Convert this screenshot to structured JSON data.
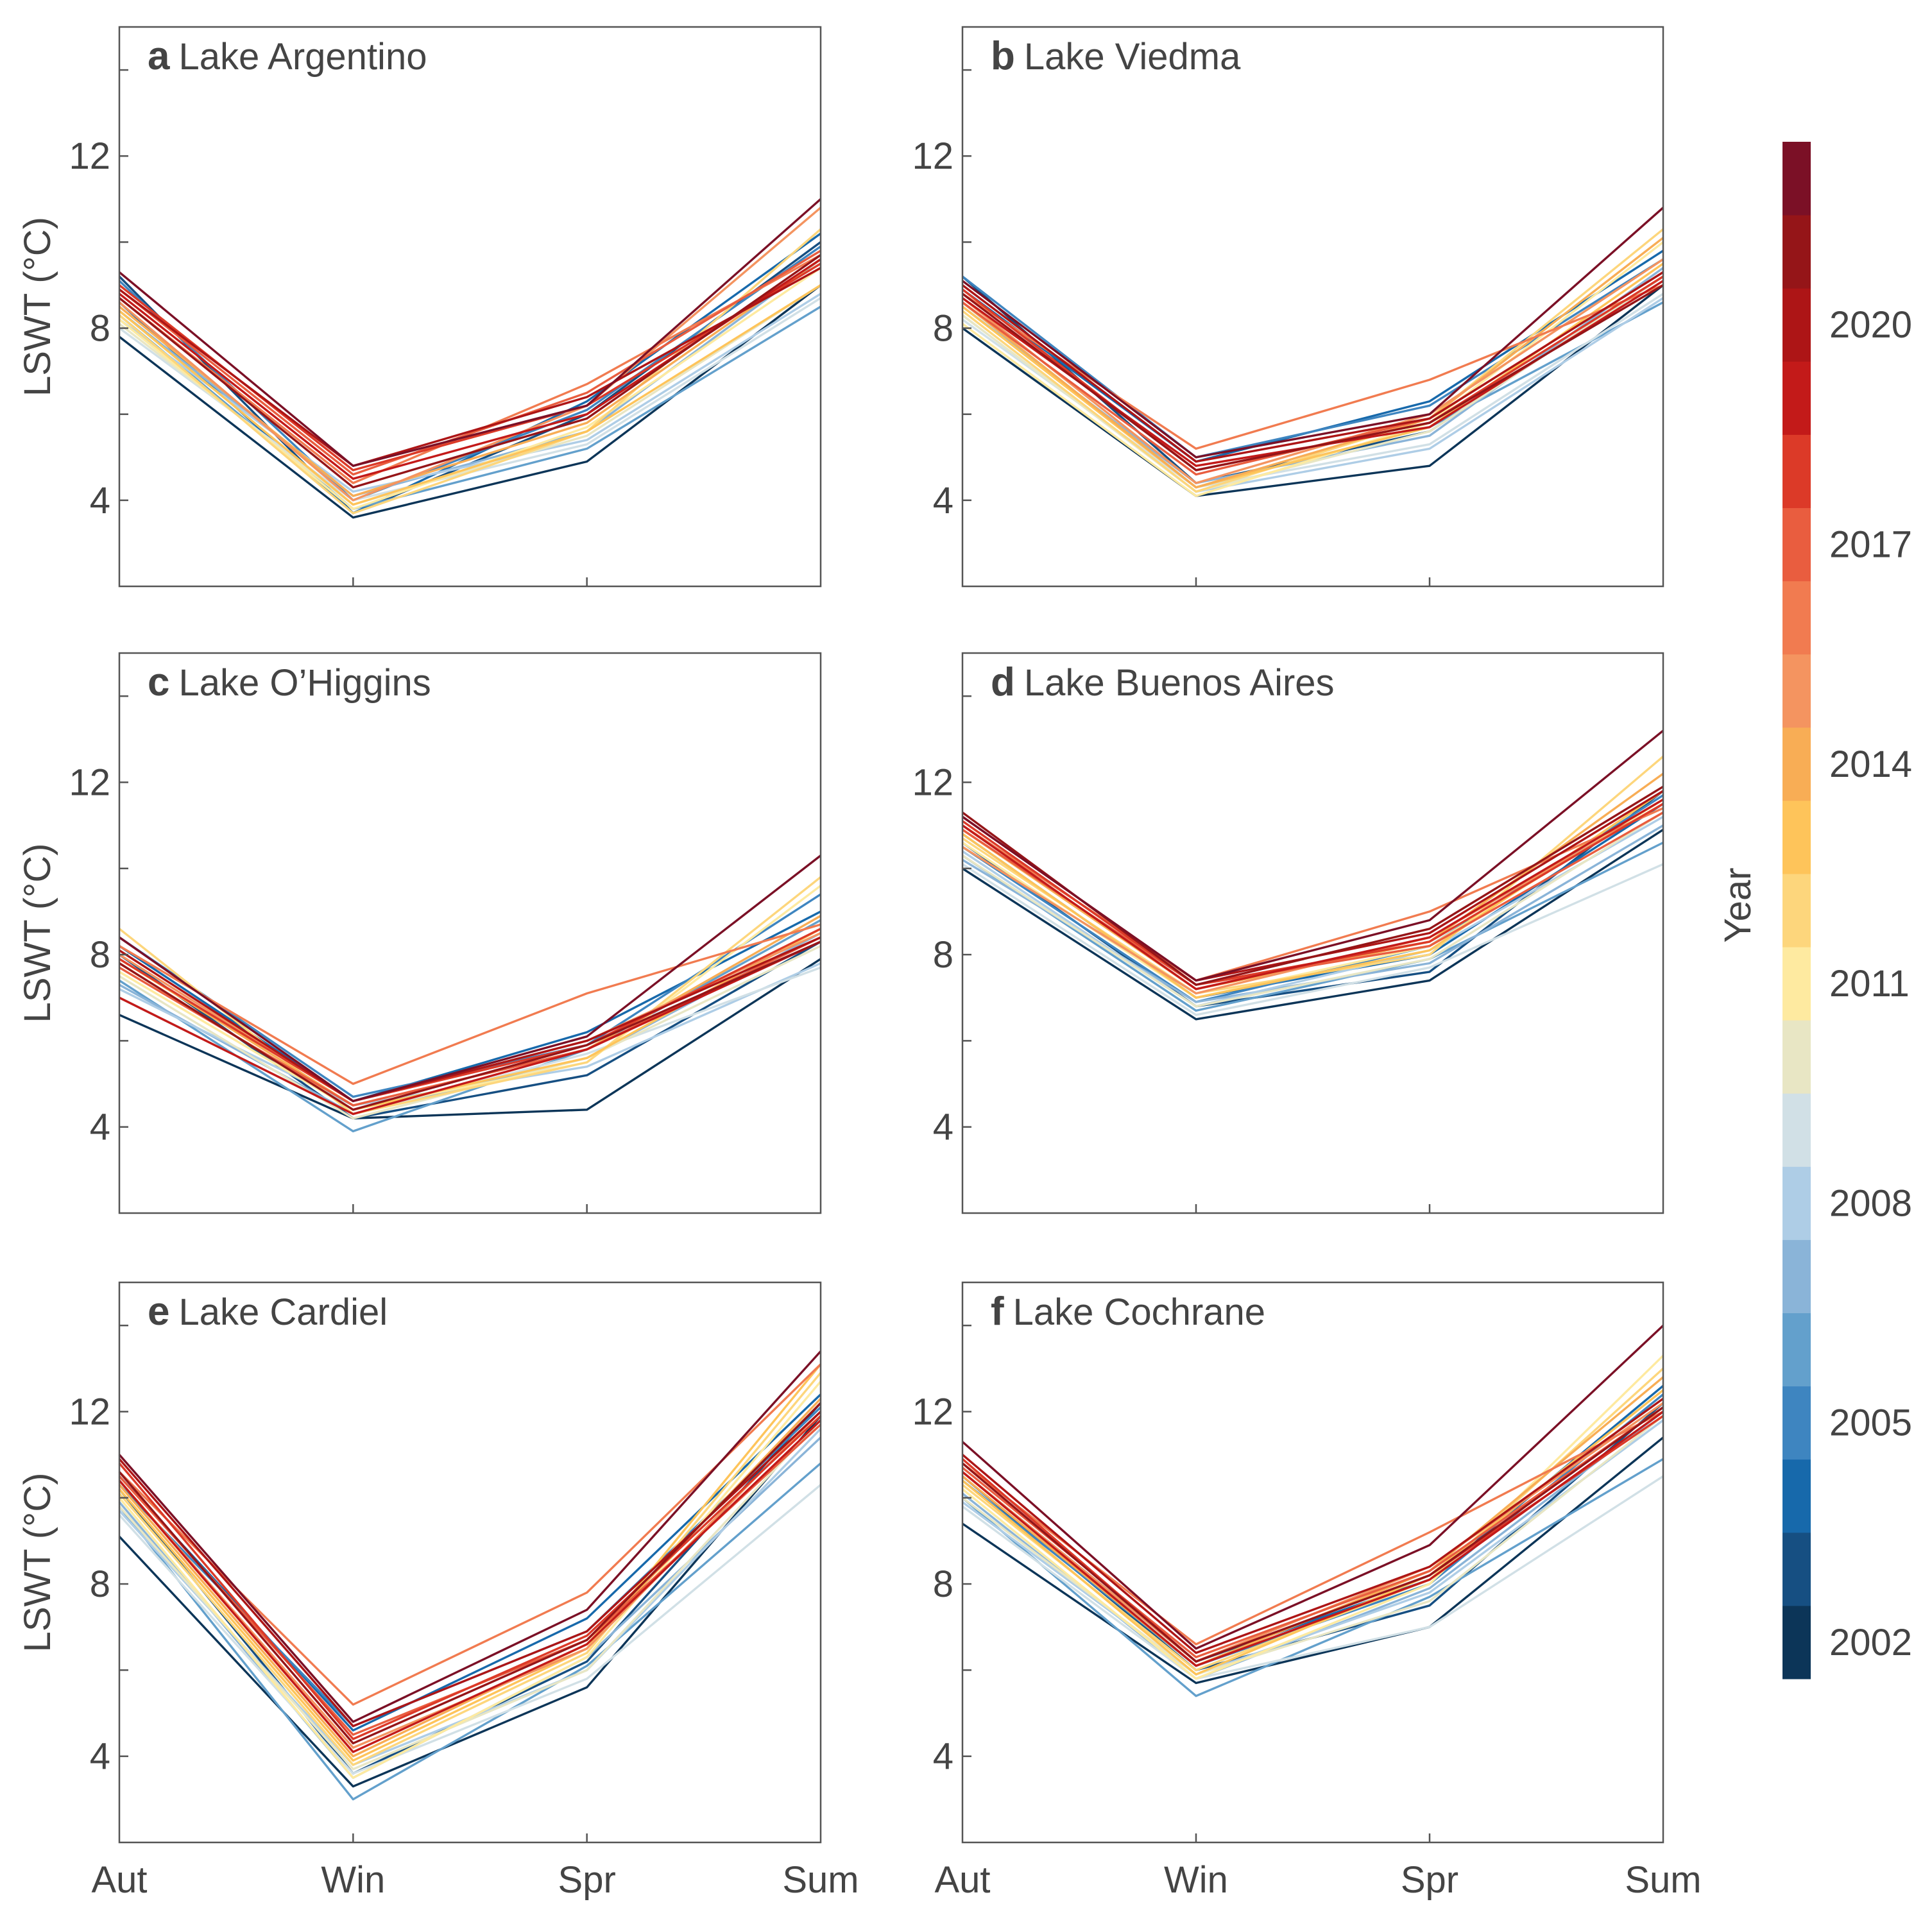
{
  "colorbar": {
    "label": "Year",
    "years": [
      2002,
      2003,
      2004,
      2005,
      2006,
      2007,
      2008,
      2009,
      2010,
      2011,
      2012,
      2013,
      2014,
      2015,
      2016,
      2017,
      2018,
      2019,
      2020,
      2021,
      2022
    ],
    "tick_labels": [
      "2002",
      "2005",
      "2008",
      "2011",
      "2014",
      "2017",
      "2020"
    ],
    "colors": [
      "#0c3558",
      "#164f82",
      "#1769ab",
      "#3e85c0",
      "#63a0cc",
      "#8ab4d8",
      "#aecde6",
      "#d1e0e6",
      "#e8e6c4",
      "#feeaa0",
      "#fdd67c",
      "#fec45a",
      "#f8ad55",
      "#f49460",
      "#f17b50",
      "#e95d3f",
      "#dc3a28",
      "#c31a19",
      "#ad1516",
      "#951518",
      "#7b1026"
    ]
  },
  "chart_data": [
    {
      "type": "line",
      "letter": "a",
      "title": "Lake Argentino",
      "ylabel": "LSWT (°C)",
      "categories": [
        "Aut",
        "Win",
        "Spr",
        "Sum"
      ],
      "ylim": [
        2,
        15
      ],
      "yticks": [
        "4",
        "8",
        "12"
      ],
      "series": [
        [
          7.8,
          3.6,
          4.9,
          9.0
        ],
        [
          9.2,
          3.7,
          6.0,
          10.0
        ],
        [
          8.6,
          3.7,
          6.3,
          10.2
        ],
        [
          9.1,
          4.0,
          6.1,
          9.9
        ],
        [
          8.3,
          3.8,
          5.2,
          8.5
        ],
        [
          8.4,
          4.1,
          5.6,
          9.6
        ],
        [
          8.2,
          4.2,
          5.4,
          8.8
        ],
        [
          8.0,
          4.0,
          5.3,
          8.7
        ],
        [
          8.1,
          3.9,
          5.5,
          9.0
        ],
        [
          8.2,
          3.8,
          5.7,
          9.4
        ],
        [
          8.3,
          3.7,
          5.6,
          10.3
        ],
        [
          8.4,
          3.9,
          5.6,
          9.0
        ],
        [
          8.5,
          4.1,
          5.8,
          9.6
        ],
        [
          8.6,
          4.0,
          6.2,
          10.8
        ],
        [
          8.7,
          4.4,
          6.7,
          9.7
        ],
        [
          8.9,
          4.6,
          6.5,
          9.8
        ],
        [
          9.0,
          4.7,
          6.2,
          9.5
        ],
        [
          8.8,
          4.5,
          6.0,
          9.6
        ],
        [
          8.9,
          4.8,
          6.4,
          9.4
        ],
        [
          8.7,
          4.3,
          5.9,
          9.7
        ],
        [
          9.3,
          4.8,
          6.2,
          11.0
        ]
      ]
    },
    {
      "type": "line",
      "letter": "b",
      "title": "Lake Viedma",
      "ylabel": "",
      "categories": [
        "Aut",
        "Win",
        "Spr",
        "Sum"
      ],
      "ylim": [
        2,
        15
      ],
      "yticks": [
        "4",
        "8",
        "12"
      ],
      "series": [
        [
          8.0,
          4.1,
          4.8,
          9.0
        ],
        [
          9.2,
          4.4,
          5.6,
          9.2
        ],
        [
          8.9,
          4.9,
          6.3,
          9.8
        ],
        [
          9.2,
          5.0,
          6.2,
          9.6
        ],
        [
          8.6,
          4.3,
          5.7,
          8.6
        ],
        [
          8.5,
          4.4,
          5.5,
          9.4
        ],
        [
          8.3,
          4.2,
          5.2,
          8.7
        ],
        [
          8.2,
          4.3,
          5.3,
          8.8
        ],
        [
          8.3,
          4.2,
          5.6,
          9.2
        ],
        [
          8.1,
          4.1,
          5.8,
          10.0
        ],
        [
          8.4,
          4.2,
          5.9,
          10.3
        ],
        [
          8.5,
          4.3,
          5.7,
          9.5
        ],
        [
          8.6,
          4.3,
          5.9,
          10.1
        ],
        [
          8.7,
          4.4,
          6.0,
          9.6
        ],
        [
          8.8,
          5.2,
          6.8,
          9.0
        ],
        [
          8.6,
          4.6,
          5.9,
          9.3
        ],
        [
          8.9,
          4.7,
          5.8,
          9.2
        ],
        [
          8.7,
          4.8,
          5.7,
          9.1
        ],
        [
          9.0,
          4.9,
          5.9,
          9.3
        ],
        [
          8.8,
          4.7,
          5.8,
          9.0
        ],
        [
          9.1,
          5.0,
          6.0,
          10.8
        ]
      ]
    },
    {
      "type": "line",
      "letter": "c",
      "title": "Lake O’Higgins",
      "ylabel": "LSWT (°C)",
      "categories": [
        "Aut",
        "Win",
        "Spr",
        "Sum"
      ],
      "ylim": [
        2,
        15
      ],
      "yticks": [
        "4",
        "8",
        "12"
      ],
      "series": [
        [
          6.6,
          4.2,
          4.4,
          7.9
        ],
        [
          8.0,
          4.2,
          5.2,
          8.3
        ],
        [
          8.2,
          4.6,
          6.2,
          9.0
        ],
        [
          8.4,
          4.7,
          5.9,
          9.4
        ],
        [
          7.4,
          3.9,
          5.8,
          8.8
        ],
        [
          7.3,
          4.3,
          5.6,
          8.5
        ],
        [
          7.2,
          4.5,
          5.4,
          7.8
        ],
        [
          7.0,
          4.3,
          5.7,
          7.7
        ],
        [
          7.5,
          4.2,
          5.6,
          8.2
        ],
        [
          7.6,
          4.4,
          5.5,
          9.6
        ],
        [
          8.6,
          4.3,
          5.5,
          9.8
        ],
        [
          7.8,
          4.4,
          5.6,
          8.6
        ],
        [
          7.9,
          4.5,
          5.8,
          8.9
        ],
        [
          8.0,
          4.6,
          6.0,
          8.5
        ],
        [
          8.2,
          5.0,
          7.1,
          8.7
        ],
        [
          7.7,
          4.5,
          5.8,
          8.4
        ],
        [
          7.9,
          4.6,
          5.9,
          8.6
        ],
        [
          7.0,
          4.3,
          5.8,
          8.3
        ],
        [
          8.1,
          4.6,
          6.0,
          8.4
        ],
        [
          7.8,
          4.4,
          5.9,
          8.3
        ],
        [
          8.4,
          4.6,
          6.1,
          10.3
        ]
      ]
    },
    {
      "type": "line",
      "letter": "d",
      "title": "Lake Buenos Aires",
      "ylabel": "",
      "categories": [
        "Aut",
        "Win",
        "Spr",
        "Sum"
      ],
      "ylim": [
        2,
        15
      ],
      "yticks": [
        "4",
        "8",
        "12"
      ],
      "series": [
        [
          10.0,
          6.5,
          7.4,
          10.9
        ],
        [
          10.6,
          6.8,
          7.6,
          11.8
        ],
        [
          10.8,
          7.0,
          8.0,
          11.5
        ],
        [
          10.5,
          6.9,
          8.2,
          11.7
        ],
        [
          10.3,
          6.7,
          7.9,
          10.6
        ],
        [
          10.2,
          6.9,
          7.8,
          11.0
        ],
        [
          10.4,
          6.8,
          8.1,
          11.2
        ],
        [
          10.1,
          6.6,
          7.7,
          10.1
        ],
        [
          10.3,
          6.8,
          7.9,
          11.3
        ],
        [
          10.6,
          7.0,
          8.2,
          11.6
        ],
        [
          10.7,
          7.1,
          8.0,
          12.6
        ],
        [
          10.8,
          7.0,
          8.1,
          11.8
        ],
        [
          10.9,
          7.2,
          8.3,
          12.2
        ],
        [
          10.5,
          7.1,
          8.4,
          11.5
        ],
        [
          11.0,
          7.4,
          9.0,
          11.4
        ],
        [
          10.9,
          7.3,
          8.2,
          11.3
        ],
        [
          11.1,
          7.3,
          8.3,
          11.5
        ],
        [
          11.0,
          7.2,
          8.4,
          11.6
        ],
        [
          11.2,
          7.4,
          8.5,
          11.8
        ],
        [
          11.3,
          7.3,
          8.6,
          11.9
        ],
        [
          11.2,
          7.4,
          8.8,
          13.2
        ]
      ]
    },
    {
      "type": "line",
      "letter": "e",
      "title": "Lake Cardiel",
      "ylabel": "LSWT (°C)",
      "categories": [
        "Aut",
        "Win",
        "Spr",
        "Sum"
      ],
      "ylim": [
        2,
        15
      ],
      "yticks": [
        "4",
        "8",
        "12"
      ],
      "series": [
        [
          9.1,
          3.3,
          5.6,
          11.9
        ],
        [
          10.2,
          3.6,
          6.2,
          12.2
        ],
        [
          10.5,
          4.6,
          7.2,
          12.4
        ],
        [
          10.3,
          4.7,
          6.9,
          12.1
        ],
        [
          9.8,
          3.0,
          6.1,
          10.8
        ],
        [
          9.9,
          3.5,
          6.3,
          11.4
        ],
        [
          9.7,
          3.8,
          6.0,
          11.6
        ],
        [
          9.6,
          3.6,
          5.8,
          10.3
        ],
        [
          9.8,
          3.7,
          6.0,
          11.8
        ],
        [
          10.0,
          3.5,
          6.3,
          12.7
        ],
        [
          10.1,
          3.8,
          6.4,
          12.9
        ],
        [
          10.2,
          3.9,
          6.5,
          13.1
        ],
        [
          10.3,
          4.0,
          6.6,
          12.3
        ],
        [
          10.4,
          4.2,
          6.5,
          12.0
        ],
        [
          10.6,
          5.2,
          7.8,
          13.1
        ],
        [
          10.5,
          4.5,
          6.7,
          11.7
        ],
        [
          10.8,
          4.4,
          6.8,
          11.9
        ],
        [
          10.4,
          4.1,
          6.6,
          11.8
        ],
        [
          10.9,
          4.7,
          6.9,
          12.0
        ],
        [
          10.6,
          4.3,
          6.7,
          12.2
        ],
        [
          11.0,
          4.8,
          7.4,
          13.4
        ]
      ]
    },
    {
      "type": "line",
      "letter": "f",
      "title": "Lake Cochrane",
      "ylabel": "",
      "categories": [
        "Aut",
        "Win",
        "Spr",
        "Sum"
      ],
      "ylim": [
        2,
        15
      ],
      "yticks": [
        "4",
        "8",
        "12"
      ],
      "series": [
        [
          9.4,
          5.7,
          7.0,
          11.4
        ],
        [
          10.5,
          6.0,
          7.5,
          12.2
        ],
        [
          10.6,
          6.2,
          8.1,
          12.6
        ],
        [
          10.4,
          6.1,
          8.0,
          12.4
        ],
        [
          10.0,
          5.4,
          7.7,
          10.9
        ],
        [
          10.1,
          5.8,
          7.9,
          12.0
        ],
        [
          9.9,
          5.9,
          7.8,
          11.8
        ],
        [
          9.8,
          5.8,
          7.0,
          10.5
        ],
        [
          10.0,
          5.9,
          7.6,
          11.9
        ],
        [
          10.2,
          5.8,
          8.0,
          13.3
        ],
        [
          10.3,
          6.0,
          8.1,
          13.0
        ],
        [
          10.4,
          5.9,
          8.2,
          12.5
        ],
        [
          10.5,
          6.1,
          8.3,
          12.8
        ],
        [
          10.6,
          6.2,
          8.4,
          12.2
        ],
        [
          10.8,
          6.6,
          9.2,
          12.0
        ],
        [
          10.7,
          6.3,
          8.3,
          12.1
        ],
        [
          10.9,
          6.2,
          8.2,
          11.9
        ],
        [
          10.6,
          6.1,
          8.1,
          12.0
        ],
        [
          11.0,
          6.4,
          8.4,
          12.3
        ],
        [
          10.8,
          6.2,
          8.2,
          12.1
        ],
        [
          11.3,
          6.5,
          8.9,
          14.0
        ]
      ]
    }
  ]
}
